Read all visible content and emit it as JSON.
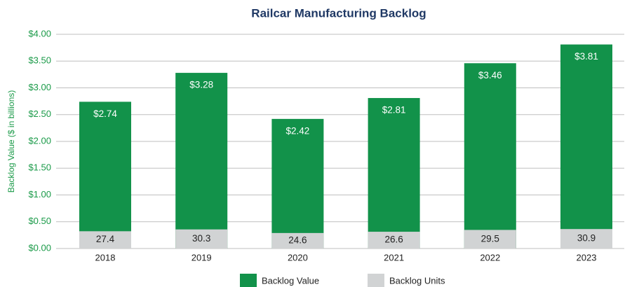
{
  "chart_data": {
    "type": "bar",
    "title": "Railcar Manufacturing Backlog",
    "y_label": "Backlog Value ($ in billions)",
    "categories": [
      "2018",
      "2019",
      "2020",
      "2021",
      "2022",
      "2023"
    ],
    "series": [
      {
        "name": "Backlog Value",
        "color": "#12924a",
        "values": [
          2.74,
          3.28,
          2.42,
          2.81,
          3.46,
          3.81
        ],
        "value_labels": [
          "$2.74",
          "$3.28",
          "$2.42",
          "$2.81",
          "$3.46",
          "$3.81"
        ]
      },
      {
        "name": "Backlog Units",
        "color": "#d1d3d4",
        "axis": "y2",
        "values": [
          27.4,
          30.3,
          24.6,
          26.6,
          29.5,
          30.9
        ]
      }
    ],
    "ylim": [
      0,
      4
    ],
    "yticks": [
      {
        "value": 0,
        "label": "$0.00"
      },
      {
        "value": 0.5,
        "label": "$0.50"
      },
      {
        "value": 1,
        "label": "$1.00"
      },
      {
        "value": 1.5,
        "label": "$1.50"
      },
      {
        "value": 2,
        "label": "$2.00"
      },
      {
        "value": 2.5,
        "label": "$2.50"
      },
      {
        "value": 3,
        "label": "$3.00"
      },
      {
        "value": 3.5,
        "label": "$3.50"
      },
      {
        "value": 4,
        "label": "$4.00"
      }
    ],
    "y2lim": [
      0,
      340
    ],
    "grid": true
  }
}
